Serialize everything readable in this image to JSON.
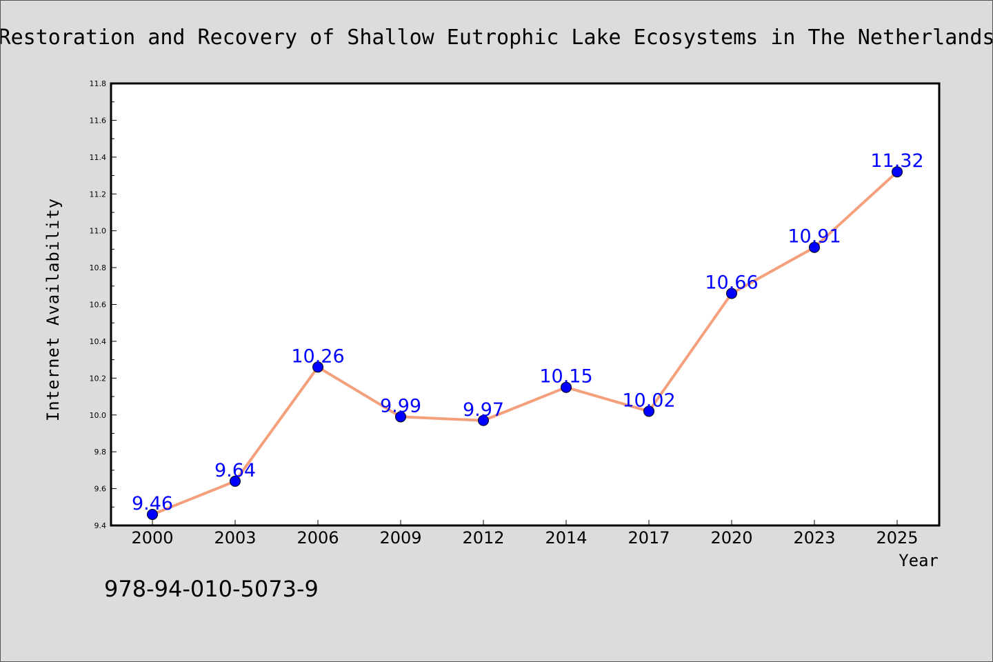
{
  "chart_data": {
    "type": "line",
    "title": "Restoration and Recovery of Shallow Eutrophic Lake Ecosystems in The Netherlands",
    "xlabel": "Year",
    "ylabel": "Internet Availability",
    "categories": [
      "2000",
      "2003",
      "2006",
      "2009",
      "2012",
      "2014",
      "2017",
      "2020",
      "2023",
      "2025"
    ],
    "values": [
      9.46,
      9.64,
      10.26,
      9.99,
      9.97,
      10.15,
      10.02,
      10.66,
      10.91,
      11.32
    ],
    "data_labels": [
      "9.46",
      "9.64",
      "10.26",
      "9.99",
      "9.97",
      "10.15",
      "10.02",
      "10.66",
      "10.91",
      "11.32"
    ],
    "ylim": [
      9.4,
      11.8
    ],
    "yticks": [
      "9.4",
      "9.6",
      "9.8",
      "10.0",
      "10.2",
      "10.4",
      "10.6",
      "10.8",
      "11.0",
      "11.2",
      "11.4",
      "11.6",
      "11.8"
    ],
    "grid": false,
    "legend": "none",
    "line_color": "#f4a07c",
    "marker_color": "#0000ff",
    "label_color": "#0000ff"
  },
  "annotation": {
    "isbn": "978-94-010-5073-9"
  }
}
